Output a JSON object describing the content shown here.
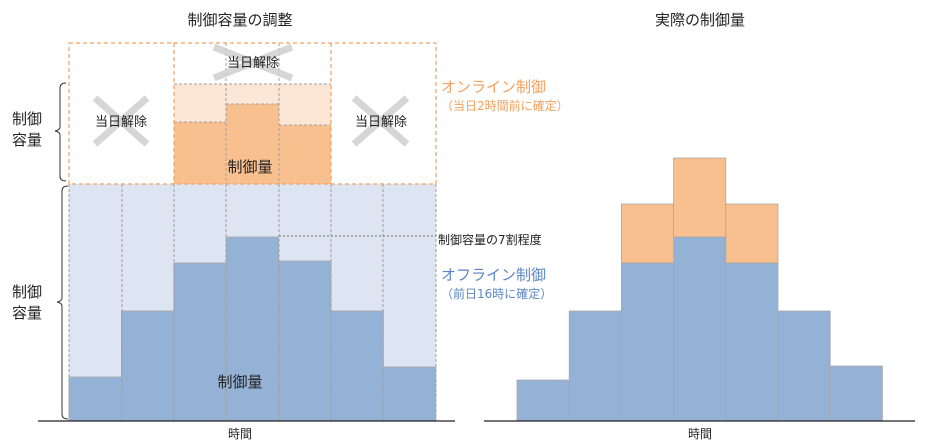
{
  "left": {
    "title": "制御容量の調整",
    "capacity_label_top": [
      "制御",
      "容量"
    ],
    "capacity_label_bottom": [
      "制御",
      "容量"
    ],
    "cancel_label": "当日解除",
    "online_amount_label": "制御量",
    "offline_amount_label": "制御量",
    "seventy_percent_label": "制御容量の7割程度",
    "online_title": "オンライン制御",
    "online_note": "（当日2時間前に確定）",
    "offline_title": "オフライン制御",
    "offline_note": "（前日16時に確定）",
    "xlabel": "時間"
  },
  "right": {
    "title": "実際の制御量",
    "xlabel": "時間"
  },
  "colors": {
    "online": "#f4a15d",
    "online_fill": "#f8bf8f",
    "online_light": "#fce7d6",
    "offline": "#5b86c4",
    "offline_fill": "#94b1d6",
    "offline_light": "#dce5f1",
    "cross": "#cfcfcf"
  }
}
